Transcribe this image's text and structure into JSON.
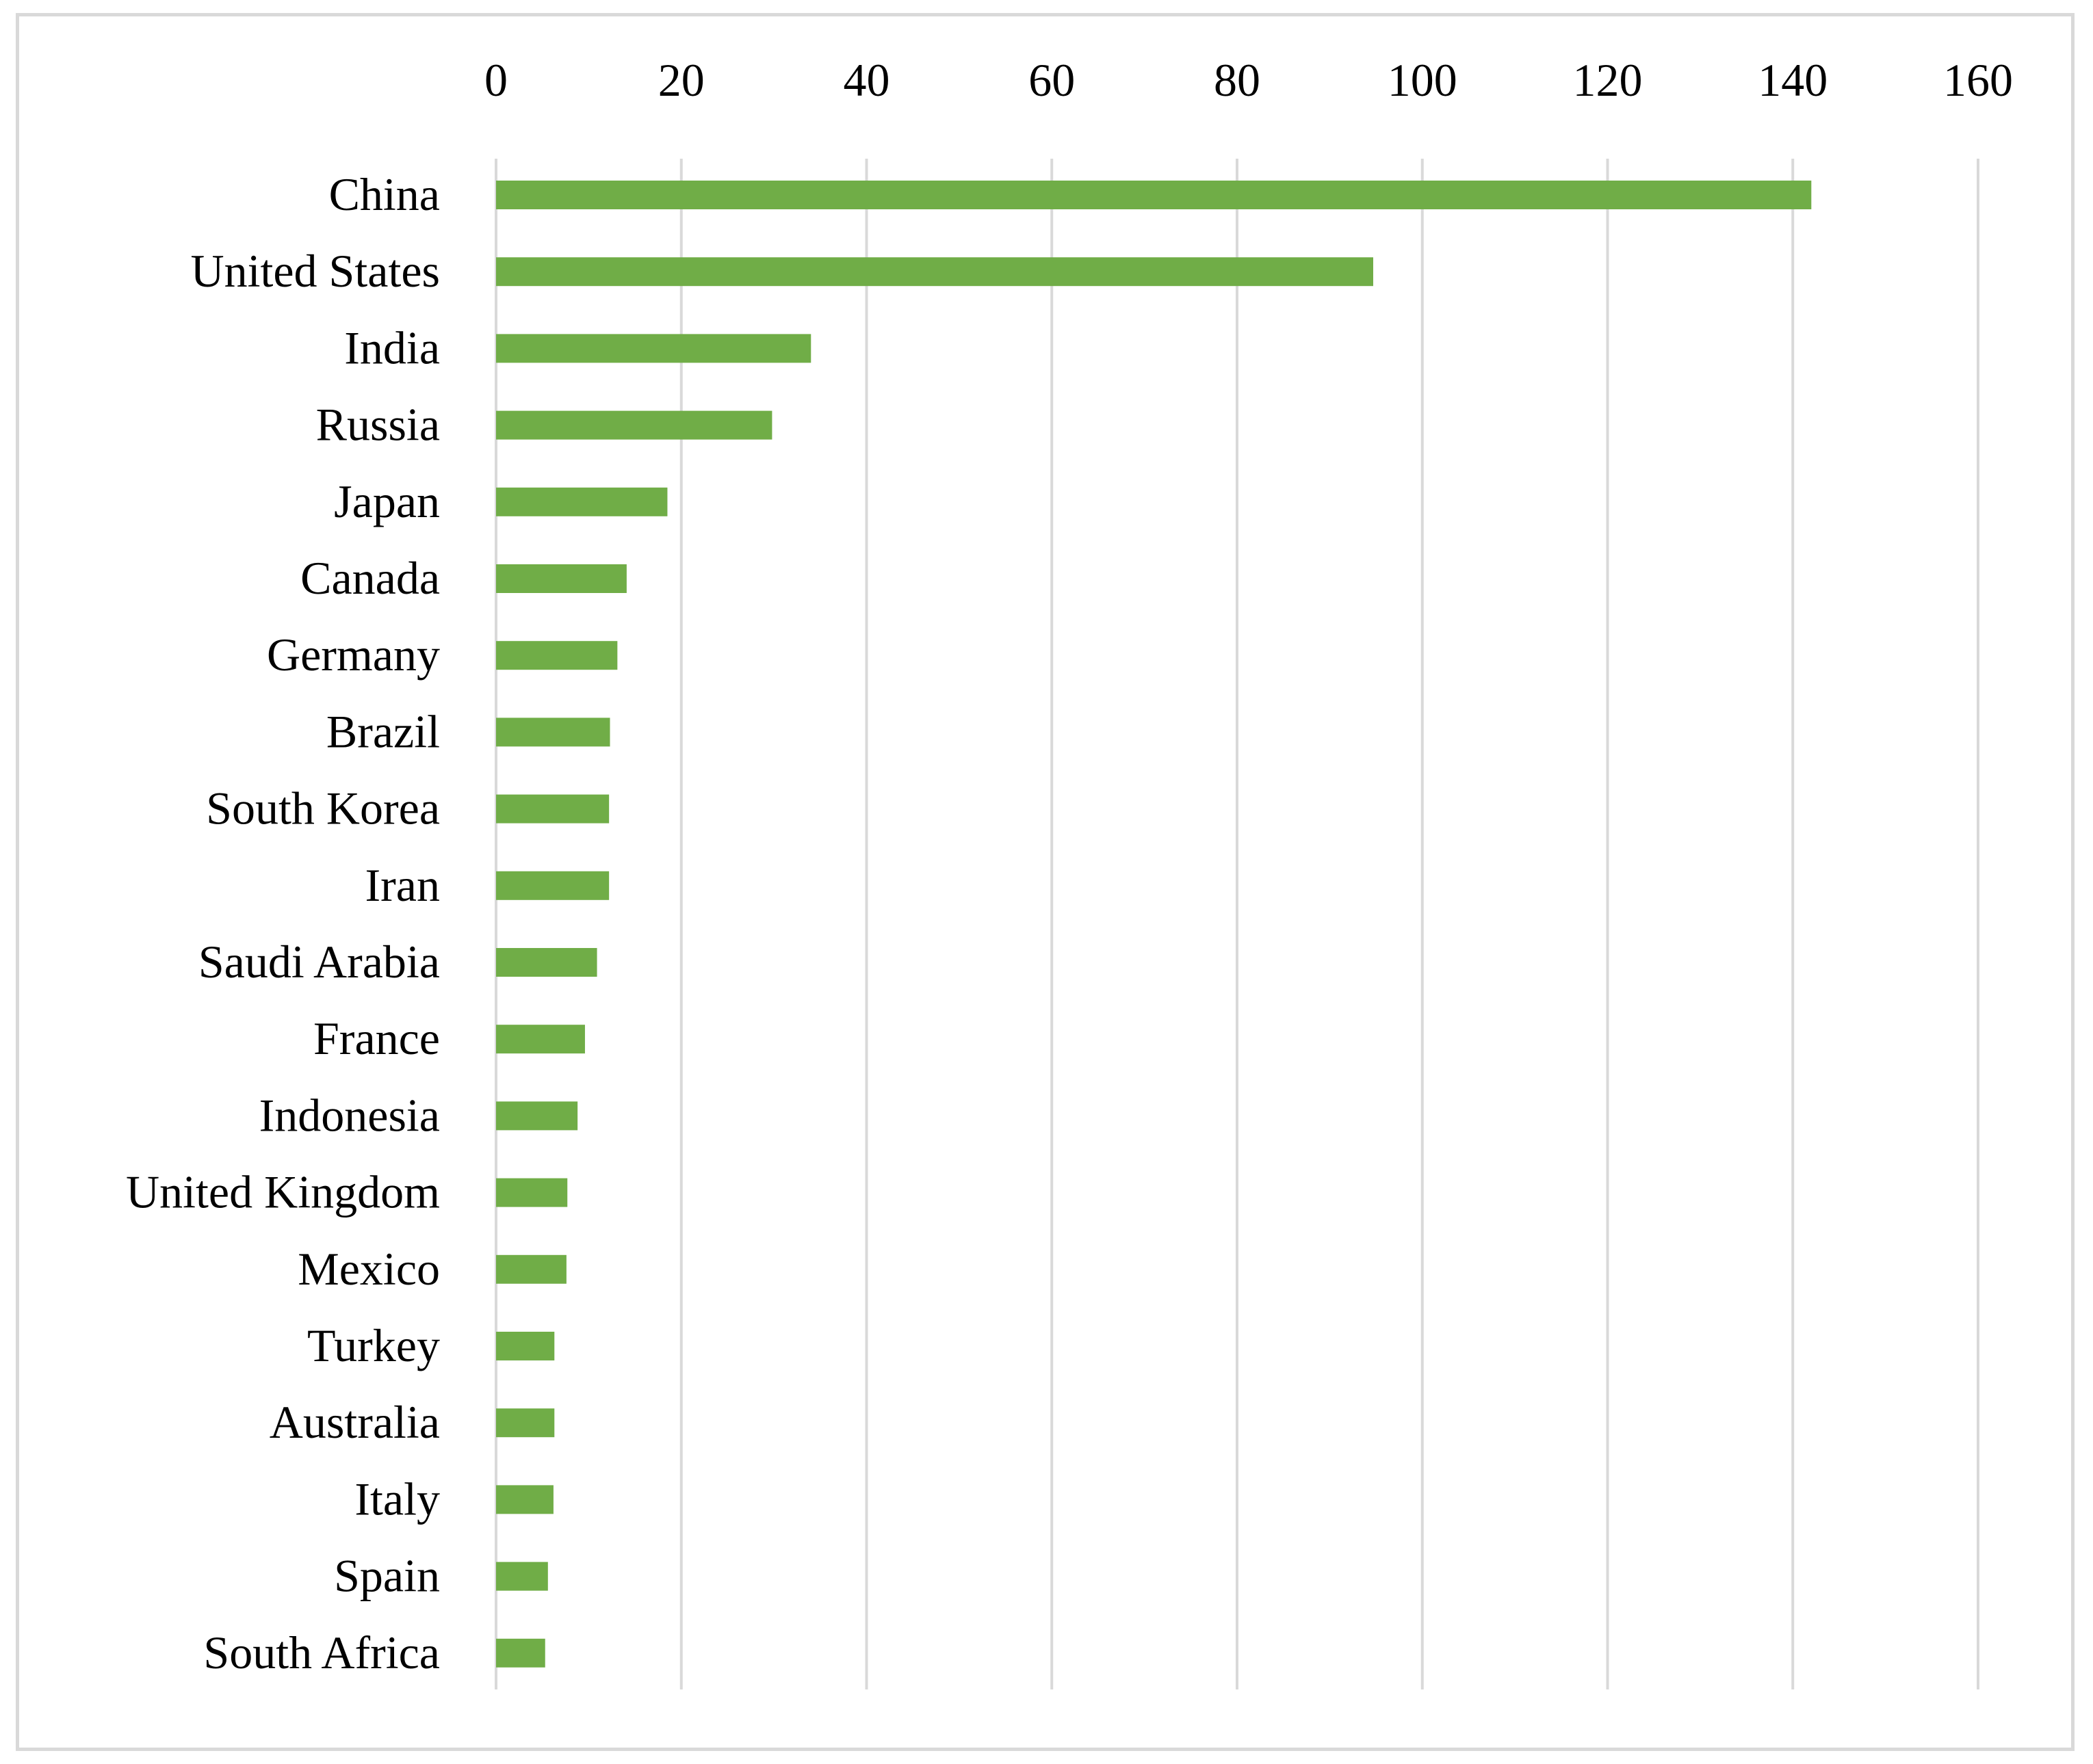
{
  "chart_data": {
    "type": "bar",
    "orientation": "horizontal",
    "categories": [
      "China",
      "United States",
      "India",
      "Russia",
      "Japan",
      "Canada",
      "Germany",
      "Brazil",
      "South Korea",
      "Iran",
      "Saudi Arabia",
      "France ",
      "Indonesia",
      "United Kingdom",
      "Mexico",
      "Turkey",
      "Australia",
      "Italy",
      "Spain",
      "South Africa"
    ],
    "values": [
      142,
      94.7,
      34,
      29.8,
      18.5,
      14.1,
      13.1,
      12.3,
      12.2,
      12.2,
      10.9,
      9.6,
      8.8,
      7.7,
      7.6,
      6.3,
      6.3,
      6.2,
      5.6,
      5.3
    ],
    "xlim": [
      0,
      160
    ],
    "ticks": [
      0,
      20,
      40,
      60,
      80,
      100,
      120,
      140,
      160
    ],
    "x_axis_position": "top",
    "grid": "vertical",
    "legend": "none",
    "title": "",
    "xlabel": "",
    "ylabel": ""
  },
  "colors": {
    "bar": "#70ad47",
    "grid": "#d9d9d9",
    "border": "#d9d9d9",
    "text": "#000000"
  }
}
